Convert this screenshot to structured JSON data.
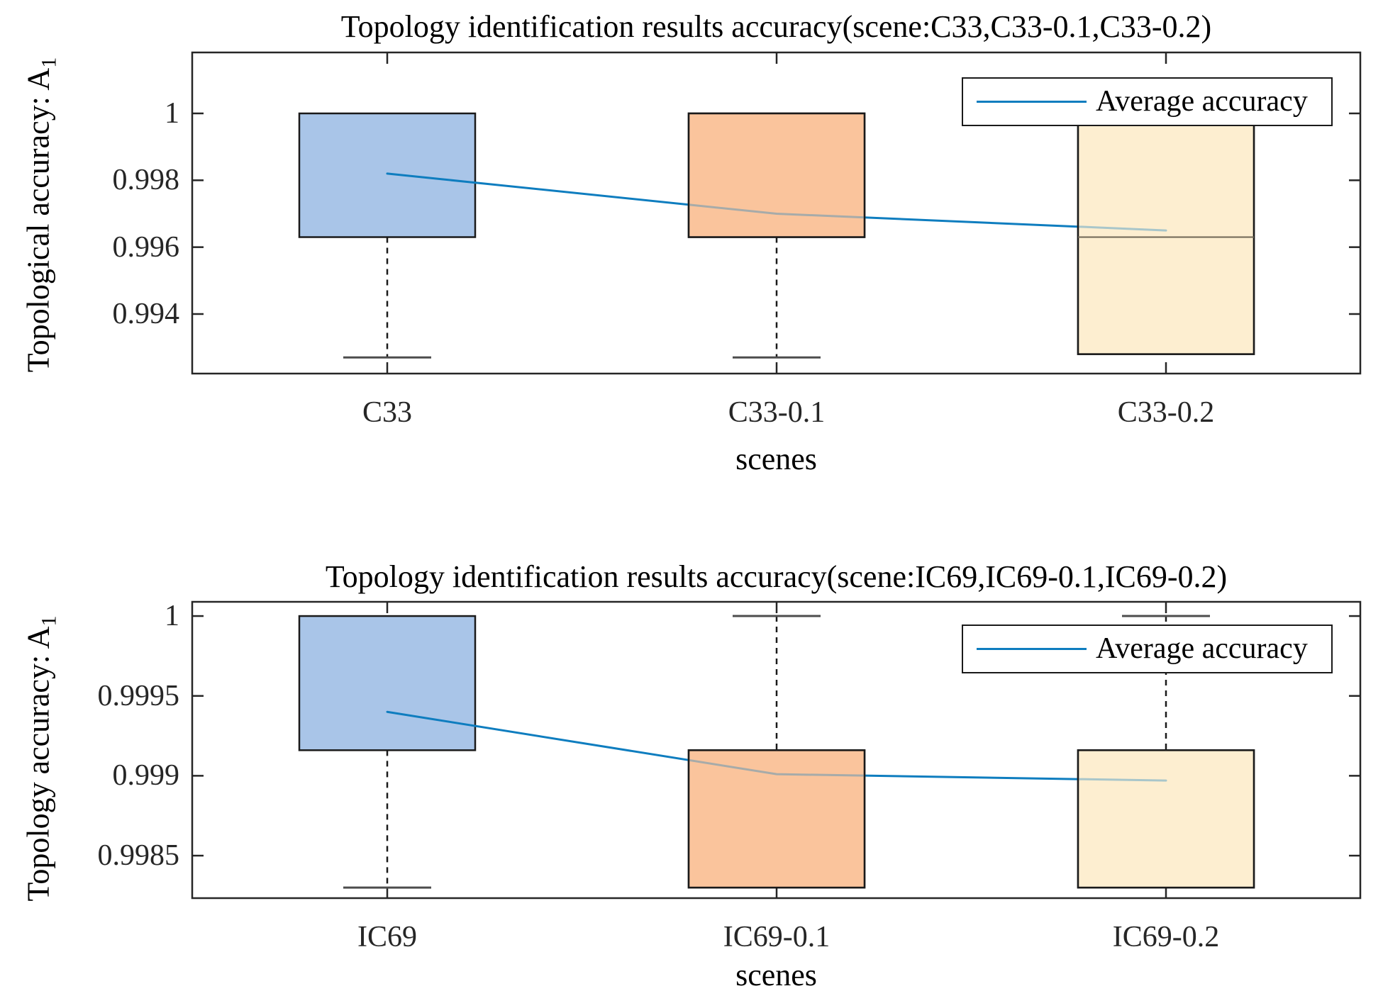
{
  "figure": {
    "background": "#ffffff"
  },
  "styles": {
    "axis_color": "#262626",
    "box_edge": "#1a1a1a",
    "whisker_color": "#1a1a1a",
    "cap_color": "#4d4d4d",
    "median_color": "#6e6655",
    "legend_border": "#1a1a1a",
    "legend_background": "#ffffff",
    "average_line_color": "#0e7dbf",
    "text_color": "#000000"
  },
  "chart_data": [
    {
      "type": "box",
      "title": "Topology identification results accuracy(scene:C33,C33-0.1,C33-0.2)",
      "ylabel": "Topological accuracy: A",
      "ylabel_sub": "1",
      "xlabel": "scenes",
      "categories": [
        "C33",
        "C33-0.1",
        "C33-0.2"
      ],
      "ytick_labels": [
        "1",
        "0.998",
        "0.996",
        "0.994"
      ],
      "ytick_values": [
        1,
        0.998,
        0.996,
        0.994
      ],
      "ylim": [
        0.992219,
        1.001823
      ],
      "grid": false,
      "legend": {
        "label": "Average accuracy",
        "position": "top-right"
      },
      "boxes": [
        {
          "category": "C33",
          "box_top_q3": 1.0,
          "box_bottom_q1": 0.9963,
          "median": 1.0,
          "whisker_low": 0.9927,
          "whisker_high": null,
          "fill": "#a9c5e8"
        },
        {
          "category": "C33-0.1",
          "box_top_q3": 1.0,
          "box_bottom_q1": 0.9963,
          "median": 1.0,
          "whisker_low": 0.9927,
          "whisker_high": null,
          "fill": "#fac49c"
        },
        {
          "category": "C33-0.2",
          "box_top_q3": 1.0,
          "box_bottom_q1": 0.9928,
          "median": 0.9963,
          "whisker_low": null,
          "whisker_high": null,
          "fill": "#fdeed0"
        }
      ],
      "series": [
        {
          "name": "Average accuracy",
          "values": [
            0.9982,
            0.997,
            0.9965
          ],
          "color": "#0e7dbf"
        }
      ]
    },
    {
      "type": "box",
      "title": "Topology identification results accuracy(scene:IC69,IC69-0.1,IC69-0.2)",
      "ylabel": "Topology accuracy: A",
      "ylabel_sub": "1",
      "xlabel": "scenes",
      "categories": [
        "IC69",
        "IC69-0.1",
        "IC69-0.2"
      ],
      "ytick_labels": [
        "1",
        "0.9995",
        "0.999",
        "0.9985"
      ],
      "ytick_values": [
        1,
        0.9995,
        0.999,
        0.9985
      ],
      "ylim": [
        0.998234,
        1.000089
      ],
      "grid": false,
      "legend": {
        "label": "Average accuracy",
        "position": "top-right"
      },
      "boxes": [
        {
          "category": "IC69",
          "box_top_q3": 1.0,
          "box_bottom_q1": 0.99916,
          "median": 1.0,
          "whisker_low": 0.9983,
          "whisker_high": null,
          "fill": "#a9c5e8"
        },
        {
          "category": "IC69-0.1",
          "box_top_q3": 0.99916,
          "box_bottom_q1": 0.9983,
          "median": 0.99916,
          "whisker_low": null,
          "whisker_high": 1.0,
          "fill": "#fac49c"
        },
        {
          "category": "IC69-0.2",
          "box_top_q3": 0.99916,
          "box_bottom_q1": 0.9983,
          "median": 0.99916,
          "whisker_low": null,
          "whisker_high": 1.0,
          "fill": "#fdeed0"
        }
      ],
      "series": [
        {
          "name": "Average accuracy",
          "values": [
            0.9994,
            0.99901,
            0.99897
          ],
          "color": "#0e7dbf"
        }
      ]
    }
  ]
}
